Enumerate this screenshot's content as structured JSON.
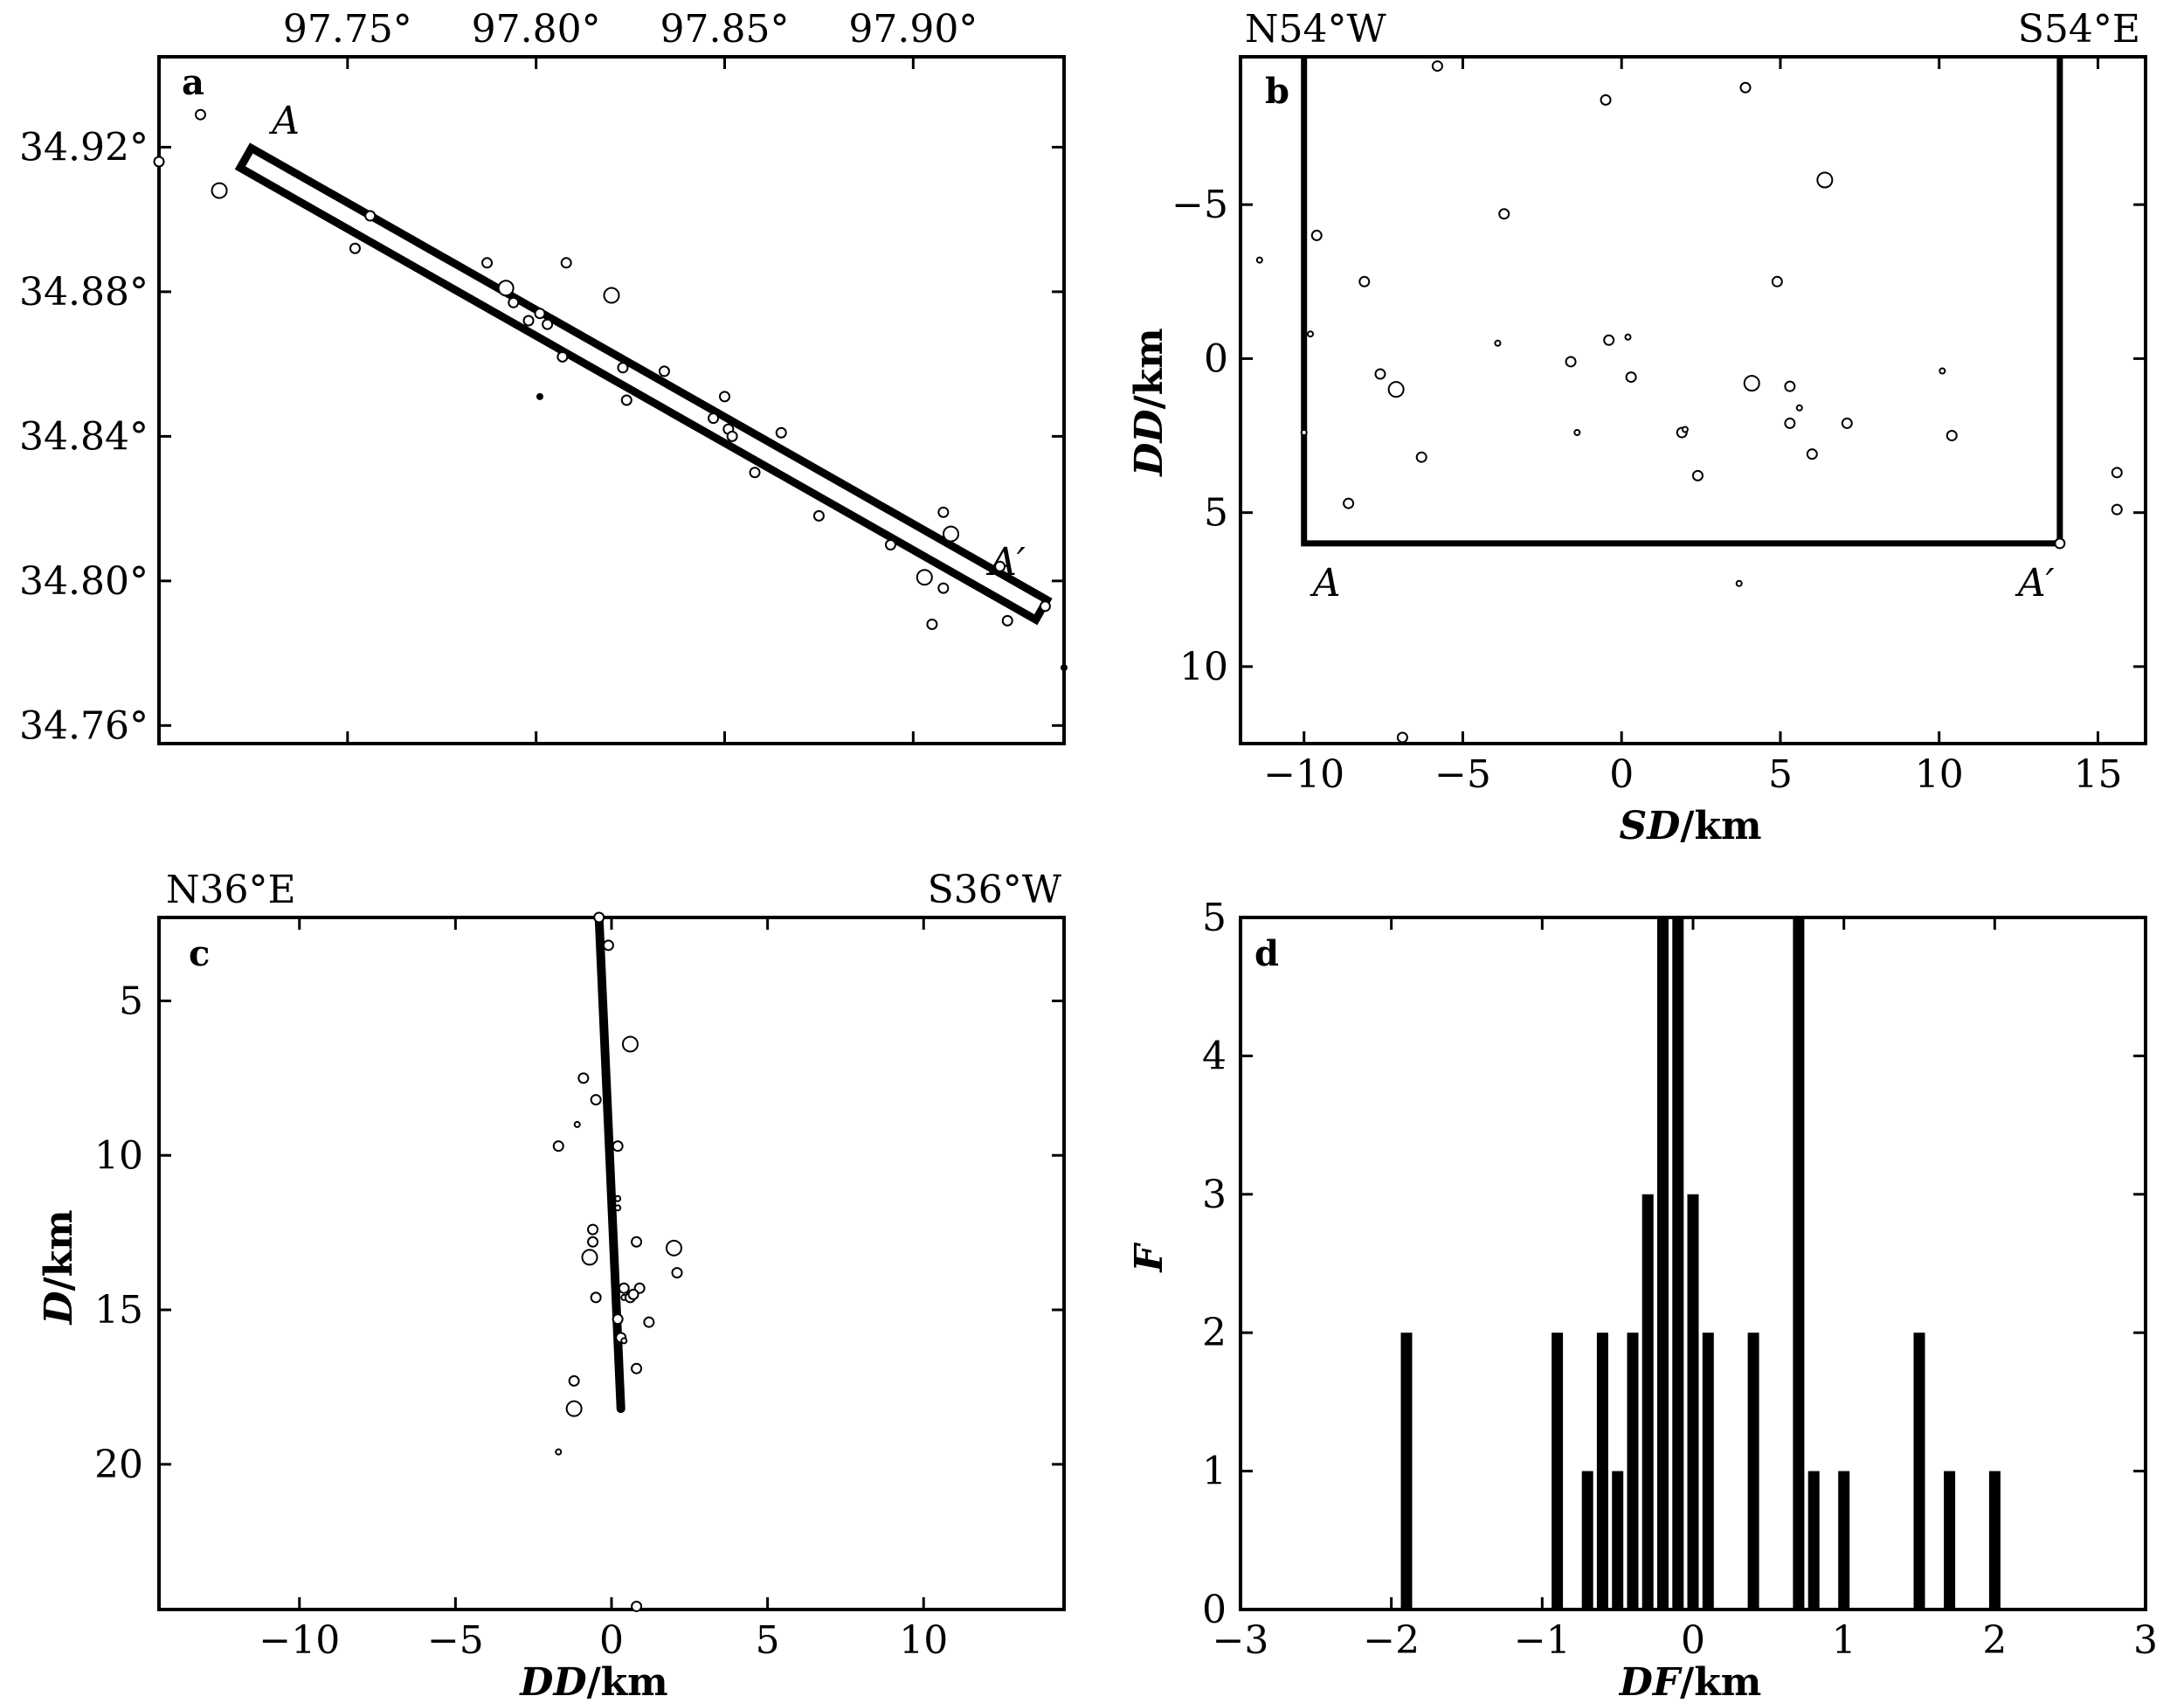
{
  "chart_data": [
    {
      "panel": "a",
      "type": "scatter",
      "top_tick_labels": [
        "97.75°",
        "97.80°",
        "97.85°",
        "97.90°"
      ],
      "left_tick_labels": [
        "34.92°",
        "34.88°",
        "34.84°",
        "34.80°",
        "34.76°"
      ],
      "xlim": [
        97.7,
        97.94
      ],
      "ylim": [
        34.755,
        34.945
      ],
      "x_ticks": [
        97.75,
        97.8,
        97.85,
        97.9
      ],
      "y_ticks": [
        34.92,
        34.88,
        34.84,
        34.8,
        34.76
      ],
      "profile": {
        "start": [
          97.723,
          34.917
        ],
        "end": [
          97.934,
          34.792
        ],
        "start_label": "A",
        "end_label": "A′"
      },
      "points": [
        [
          97.7,
          34.916,
          1
        ],
        [
          97.711,
          34.929,
          1
        ],
        [
          97.716,
          34.908,
          2
        ],
        [
          97.752,
          34.892,
          1
        ],
        [
          97.756,
          34.901,
          1
        ],
        [
          97.787,
          34.888,
          1
        ],
        [
          97.792,
          34.881,
          2
        ],
        [
          97.794,
          34.877,
          1
        ],
        [
          97.798,
          34.872,
          1
        ],
        [
          97.801,
          34.874,
          1
        ],
        [
          97.803,
          34.871,
          1
        ],
        [
          97.801,
          34.851,
          0
        ],
        [
          97.807,
          34.862,
          1
        ],
        [
          97.808,
          34.888,
          1
        ],
        [
          97.82,
          34.879,
          2
        ],
        [
          97.823,
          34.859,
          1
        ],
        [
          97.824,
          34.85,
          1
        ],
        [
          97.834,
          34.858,
          1
        ],
        [
          97.847,
          34.845,
          1
        ],
        [
          97.85,
          34.851,
          1
        ],
        [
          97.851,
          34.842,
          1
        ],
        [
          97.852,
          34.84,
          1
        ],
        [
          97.858,
          34.83,
          1
        ],
        [
          97.865,
          34.841,
          1
        ],
        [
          97.875,
          34.818,
          1
        ],
        [
          97.894,
          34.81,
          1
        ],
        [
          97.903,
          34.801,
          2
        ],
        [
          97.905,
          34.788,
          1
        ],
        [
          97.908,
          34.819,
          1
        ],
        [
          97.908,
          34.798,
          1
        ],
        [
          97.91,
          34.813,
          2
        ],
        [
          97.923,
          34.804,
          1
        ],
        [
          97.925,
          34.789,
          1
        ],
        [
          97.935,
          34.793,
          1
        ],
        [
          97.94,
          34.776,
          0
        ]
      ]
    },
    {
      "panel": "b",
      "type": "scatter",
      "corner_left": "N54°W",
      "corner_right": "S54°E",
      "xlabel_italic": "SD",
      "xlabel_unit": "/km",
      "ylabel_italic": "DD",
      "ylabel_unit": "/km",
      "xlim": [
        -12,
        16.5
      ],
      "ylim": [
        -9.8,
        12.5
      ],
      "x_ticks": [
        -10,
        -5,
        0,
        5,
        10,
        15
      ],
      "x_tick_labels": [
        "−10",
        "−5",
        "0",
        "5",
        "10",
        "15"
      ],
      "y_ticks": [
        -5,
        0,
        5,
        10
      ],
      "y_tick_labels": [
        "−5",
        "0",
        "5",
        "10"
      ],
      "rect": {
        "x1": -10,
        "x2": 13.8,
        "y1": -9.8,
        "y2": 6
      },
      "start_label": "A",
      "end_label": "A′",
      "points": [
        [
          -5.8,
          -9.5,
          1
        ],
        [
          -0.5,
          -8.4,
          1
        ],
        [
          3.9,
          -8.8,
          1
        ],
        [
          6.4,
          -5.8,
          2
        ],
        [
          -3.7,
          -4.7,
          1
        ],
        [
          -9.6,
          -4.0,
          1
        ],
        [
          -11.4,
          -3.2,
          0
        ],
        [
          -8.1,
          -2.5,
          1
        ],
        [
          4.9,
          -2.5,
          1
        ],
        [
          -9.8,
          -0.8,
          0
        ],
        [
          -3.9,
          -0.5,
          0
        ],
        [
          -0.4,
          -0.6,
          1
        ],
        [
          0.2,
          -0.7,
          0
        ],
        [
          -1.6,
          0.1,
          1
        ],
        [
          -7.6,
          0.5,
          1
        ],
        [
          0.3,
          0.6,
          1
        ],
        [
          10.1,
          0.4,
          0
        ],
        [
          -7.1,
          1.0,
          2
        ],
        [
          4.1,
          0.8,
          2
        ],
        [
          5.3,
          0.9,
          1
        ],
        [
          5.6,
          1.6,
          0
        ],
        [
          5.3,
          2.1,
          1
        ],
        [
          7.1,
          2.1,
          1
        ],
        [
          -1.4,
          2.4,
          0
        ],
        [
          1.9,
          2.4,
          1
        ],
        [
          2.0,
          2.3,
          0
        ],
        [
          10.4,
          2.5,
          1
        ],
        [
          -10.0,
          2.4,
          0
        ],
        [
          -6.3,
          3.2,
          1
        ],
        [
          6.0,
          3.1,
          1
        ],
        [
          2.4,
          3.8,
          1
        ],
        [
          -8.6,
          4.7,
          1
        ],
        [
          15.6,
          3.7,
          1
        ],
        [
          15.6,
          4.9,
          1
        ],
        [
          13.8,
          6.0,
          1
        ],
        [
          3.7,
          7.3,
          0
        ],
        [
          -6.9,
          12.3,
          1
        ]
      ]
    },
    {
      "panel": "c",
      "type": "scatter",
      "corner_left": "N36°E",
      "corner_right": "S36°W",
      "xlabel_italic": "DD",
      "xlabel_unit": "/km",
      "ylabel_italic": "D",
      "ylabel_unit": "/km",
      "xlim": [
        -14.5,
        14.5
      ],
      "ylim": [
        2.3,
        24.7
      ],
      "x_ticks": [
        -10,
        -5,
        0,
        5,
        10
      ],
      "x_tick_labels": [
        "−10",
        "−5",
        "0",
        "5",
        "10"
      ],
      "y_ticks": [
        5,
        10,
        15,
        20
      ],
      "y_tick_labels": [
        "5",
        "10",
        "15",
        "20"
      ],
      "fault_line": [
        [
          -0.4,
          2.3
        ],
        [
          0.3,
          18.2
        ]
      ],
      "points": [
        [
          -0.4,
          2.3,
          1
        ],
        [
          -0.1,
          3.2,
          1
        ],
        [
          0.6,
          6.4,
          2
        ],
        [
          -0.9,
          7.5,
          1
        ],
        [
          -0.5,
          8.2,
          1
        ],
        [
          -1.1,
          9.0,
          0
        ],
        [
          -1.7,
          9.7,
          1
        ],
        [
          0.2,
          9.7,
          1
        ],
        [
          0.2,
          11.4,
          0
        ],
        [
          0.2,
          11.7,
          0
        ],
        [
          -0.6,
          12.4,
          1
        ],
        [
          -0.6,
          12.8,
          1
        ],
        [
          0.8,
          12.8,
          1
        ],
        [
          -0.7,
          13.3,
          2
        ],
        [
          2.0,
          13.0,
          2
        ],
        [
          2.1,
          13.8,
          1
        ],
        [
          0.4,
          14.3,
          1
        ],
        [
          0.9,
          14.3,
          1
        ],
        [
          -0.5,
          14.6,
          1
        ],
        [
          0.4,
          14.6,
          0
        ],
        [
          0.6,
          14.6,
          1
        ],
        [
          0.7,
          14.5,
          1
        ],
        [
          0.2,
          15.3,
          1
        ],
        [
          1.2,
          15.4,
          1
        ],
        [
          0.3,
          15.9,
          1
        ],
        [
          0.4,
          16.0,
          0
        ],
        [
          0.8,
          16.9,
          1
        ],
        [
          -1.2,
          17.3,
          1
        ],
        [
          -1.2,
          18.2,
          2
        ],
        [
          -1.7,
          19.6,
          0
        ],
        [
          0.8,
          24.6,
          1
        ]
      ]
    },
    {
      "panel": "d",
      "type": "bar",
      "xlabel_italic": "DF",
      "xlabel_unit": "/km",
      "ylabel_italic": "F",
      "xlim": [
        -3,
        3
      ],
      "ylim": [
        0,
        5
      ],
      "x_ticks": [
        -3,
        -2,
        -1,
        0,
        1,
        2,
        3
      ],
      "x_tick_labels": [
        "−3",
        "−2",
        "−1",
        "0",
        "1",
        "2",
        "3"
      ],
      "y_ticks": [
        0,
        1,
        2,
        3,
        4,
        5
      ],
      "y_tick_labels": [
        "0",
        "1",
        "2",
        "3",
        "4",
        "5"
      ],
      "bar_width": 0.075,
      "bins": [
        [
          -1.9,
          2
        ],
        [
          -0.9,
          2
        ],
        [
          -0.7,
          1
        ],
        [
          -0.6,
          2
        ],
        [
          -0.5,
          1
        ],
        [
          -0.4,
          2
        ],
        [
          -0.3,
          3
        ],
        [
          -0.2,
          5
        ],
        [
          -0.1,
          5
        ],
        [
          0.0,
          3
        ],
        [
          0.1,
          2
        ],
        [
          0.4,
          2
        ],
        [
          0.7,
          5
        ],
        [
          0.8,
          1
        ],
        [
          1.0,
          1
        ],
        [
          1.5,
          2
        ],
        [
          1.7,
          1
        ],
        [
          2.0,
          1
        ]
      ]
    }
  ]
}
